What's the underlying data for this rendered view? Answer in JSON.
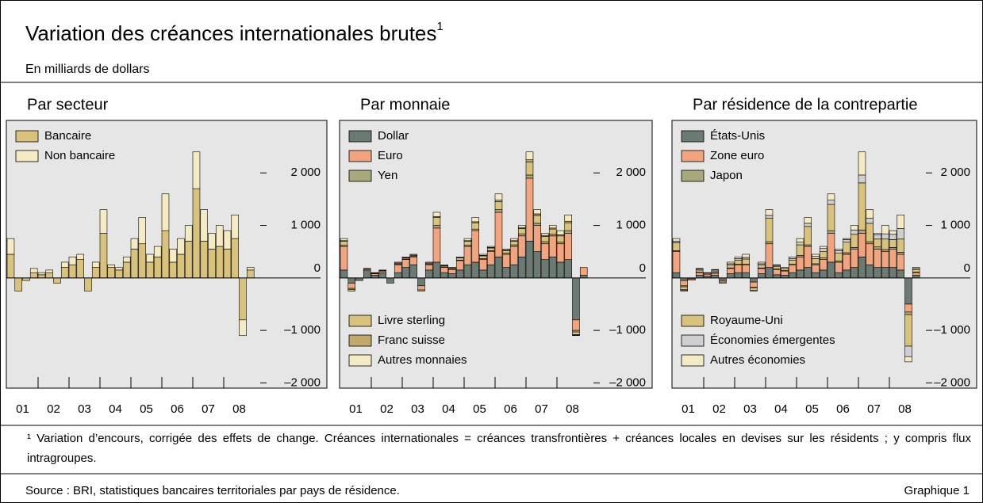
{
  "title": "Variation des créances internationales brutes",
  "title_note": "1",
  "subtitle": "En milliards de dollars",
  "footnote": "¹ Variation d’encours, corrigée des effets de change. Créances internationales = créances transfrontières + créances locales en devises sur les résidents ; y compris flux intragroupes.",
  "source": "Source : BRI, statistiques bancaires territoriales par pays de résidence.",
  "graph_number": "Graphique 1",
  "chart_data": [
    {
      "type": "bar",
      "stacked": true,
      "title": "Par secteur",
      "categories": [
        "01",
        "02",
        "03",
        "04",
        "05",
        "06",
        "07",
        "08"
      ],
      "ylim": [
        -2100,
        3000
      ],
      "yticks": [
        {
          "value": 2000,
          "label": "2 000"
        },
        {
          "value": 1000,
          "label": "1 000"
        },
        0,
        {
          "value": -1000,
          "label": "–1 000"
        },
        {
          "value": -2000,
          "label": "–2 000"
        }
      ],
      "series": [
        {
          "name": "Bancaire",
          "color": "#d9c27c",
          "values": [
            [
              450,
              -250,
              -50,
              100
            ],
            [
              60,
              100,
              -100,
              200
            ],
            [
              250,
              350,
              -250,
              200
            ],
            [
              850,
              200,
              150,
              300
            ],
            [
              550,
              650,
              300,
              400
            ],
            [
              900,
              300,
              450,
              700
            ],
            [
              1700,
              700,
              550,
              600
            ],
            [
              550,
              750,
              -800,
              150
            ]
          ]
        },
        {
          "name": "Non bancaire",
          "color": "#f4eac3",
          "values": [
            [
              300,
              0,
              0,
              80
            ],
            [
              40,
              50,
              0,
              100
            ],
            [
              150,
              100,
              0,
              100
            ],
            [
              450,
              50,
              50,
              100
            ],
            [
              200,
              500,
              150,
              200
            ],
            [
              700,
              250,
              300,
              300
            ],
            [
              700,
              600,
              300,
              400
            ],
            [
              350,
              450,
              -300,
              50
            ]
          ]
        }
      ]
    },
    {
      "type": "bar",
      "stacked": true,
      "title": "Par monnaie",
      "categories": [
        "01",
        "02",
        "03",
        "04",
        "05",
        "06",
        "07",
        "08"
      ],
      "ylim": [
        -2100,
        3000
      ],
      "yticks": [
        {
          "value": 2000,
          "label": "2 000"
        },
        {
          "value": 1000,
          "label": "1 000"
        },
        0,
        {
          "value": -1000,
          "label": "–1 000"
        },
        {
          "value": -2000,
          "label": "–2 000"
        }
      ],
      "series": [
        {
          "name": "Dollar",
          "color": "#6b7a72",
          "values": [
            [
              150,
              -100,
              -50,
              150
            ],
            [
              50,
              100,
              -100,
              100
            ],
            [
              200,
              250,
              -150,
              150
            ],
            [
              300,
              100,
              80,
              150
            ],
            [
              250,
              300,
              150,
              250
            ],
            [
              400,
              200,
              250,
              400
            ],
            [
              700,
              500,
              350,
              400
            ],
            [
              300,
              350,
              -800,
              50
            ]
          ]
        },
        {
          "name": "Euro",
          "color": "#f2a47f",
          "values": [
            [
              450,
              -100,
              0,
              20
            ],
            [
              30,
              30,
              0,
              150
            ],
            [
              150,
              150,
              -80,
              100
            ],
            [
              650,
              100,
              80,
              180
            ],
            [
              350,
              600,
              200,
              250
            ],
            [
              850,
              250,
              350,
              400
            ],
            [
              1200,
              500,
              300,
              400
            ],
            [
              350,
              500,
              -200,
              150
            ]
          ]
        },
        {
          "name": "Yen",
          "color": "#a9a87b",
          "values": [
            [
              20,
              -20,
              0,
              0
            ],
            [
              0,
              0,
              0,
              10
            ],
            [
              10,
              10,
              0,
              10
            ],
            [
              50,
              10,
              10,
              10
            ],
            [
              20,
              30,
              20,
              20
            ],
            [
              50,
              20,
              30,
              40
            ],
            [
              60,
              40,
              40,
              30
            ],
            [
              30,
              50,
              -30,
              0
            ]
          ]
        },
        {
          "name": "Livre sterling",
          "color": "#d9c27c",
          "values": [
            [
              80,
              -30,
              0,
              10
            ],
            [
              10,
              10,
              0,
              20
            ],
            [
              20,
              20,
              -20,
              20
            ],
            [
              150,
              20,
              20,
              40
            ],
            [
              80,
              120,
              50,
              50
            ],
            [
              150,
              50,
              70,
              100
            ],
            [
              250,
              150,
              100,
              100
            ],
            [
              120,
              150,
              -50,
              0
            ]
          ]
        },
        {
          "name": "Franc suisse",
          "color": "#c3a86b",
          "values": [
            [
              10,
              0,
              0,
              0
            ],
            [
              0,
              0,
              0,
              5
            ],
            [
              5,
              5,
              0,
              5
            ],
            [
              20,
              5,
              5,
              5
            ],
            [
              10,
              20,
              10,
              10
            ],
            [
              30,
              10,
              10,
              20
            ],
            [
              40,
              30,
              20,
              20
            ],
            [
              20,
              30,
              -10,
              0
            ]
          ]
        },
        {
          "name": "Autres monnaies",
          "color": "#f4eac3",
          "values": [
            [
              40,
              0,
              0,
              0
            ],
            [
              10,
              10,
              0,
              15
            ],
            [
              15,
              15,
              0,
              15
            ],
            [
              80,
              15,
              5,
              15
            ],
            [
              40,
              80,
              20,
              20
            ],
            [
              120,
              20,
              40,
              40
            ],
            [
              150,
              80,
              40,
              50
            ],
            [
              80,
              120,
              -10,
              0
            ]
          ]
        }
      ]
    },
    {
      "type": "bar",
      "stacked": true,
      "title": "Par résidence de la contrepartie",
      "categories": [
        "01",
        "02",
        "03",
        "04",
        "05",
        "06",
        "07",
        "08"
      ],
      "ylim": [
        -2100,
        3000
      ],
      "yticks": [
        {
          "value": 2000,
          "label": "2 000"
        },
        {
          "value": 1000,
          "label": "1 000"
        },
        0,
        {
          "value": -1000,
          "label": "–1 000"
        },
        {
          "value": -2000,
          "label": "–2 000"
        }
      ],
      "series": [
        {
          "name": "États-Unis",
          "color": "#6b7a72",
          "values": [
            [
              100,
              -50,
              -20,
              50
            ],
            [
              30,
              50,
              -50,
              80
            ],
            [
              100,
              100,
              -80,
              80
            ],
            [
              200,
              60,
              50,
              100
            ],
            [
              150,
              200,
              100,
              150
            ],
            [
              300,
              100,
              150,
              200
            ],
            [
              400,
              250,
              200,
              200
            ],
            [
              200,
              150,
              -500,
              50
            ]
          ]
        },
        {
          "name": "Zone euro",
          "color": "#f2a47f",
          "values": [
            [
              400,
              -100,
              -20,
              50
            ],
            [
              40,
              40,
              -30,
              100
            ],
            [
              150,
              150,
              -100,
              100
            ],
            [
              450,
              100,
              80,
              150
            ],
            [
              250,
              400,
              150,
              200
            ],
            [
              550,
              200,
              300,
              350
            ],
            [
              450,
              400,
              350,
              300
            ],
            [
              350,
              300,
              -150,
              50
            ]
          ]
        },
        {
          "name": "Japon",
          "color": "#a9a87b",
          "values": [
            [
              20,
              -20,
              0,
              10
            ],
            [
              0,
              10,
              0,
              10
            ],
            [
              10,
              10,
              -10,
              10
            ],
            [
              40,
              10,
              10,
              10
            ],
            [
              30,
              30,
              20,
              30
            ],
            [
              50,
              20,
              30,
              30
            ],
            [
              60,
              40,
              40,
              40
            ],
            [
              30,
              40,
              -50,
              10
            ]
          ]
        },
        {
          "name": "Royaume-Uni",
          "color": "#d9c27c",
          "values": [
            [
              150,
              -50,
              0,
              40
            ],
            [
              20,
              30,
              -20,
              60
            ],
            [
              80,
              100,
              -50,
              60
            ],
            [
              450,
              50,
              40,
              80
            ],
            [
              200,
              350,
              100,
              120
            ],
            [
              500,
              150,
              200,
              250
            ],
            [
              900,
              350,
              150,
              200
            ],
            [
              150,
              250,
              -600,
              50
            ]
          ]
        },
        {
          "name": "Économies émergentes",
          "color": "#cfcfcf",
          "values": [
            [
              30,
              -20,
              0,
              20
            ],
            [
              10,
              20,
              0,
              20
            ],
            [
              30,
              30,
              0,
              20
            ],
            [
              50,
              20,
              20,
              30
            ],
            [
              50,
              60,
              40,
              60
            ],
            [
              80,
              50,
              50,
              80
            ],
            [
              150,
              100,
              80,
              100
            ],
            [
              100,
              200,
              -200,
              20
            ]
          ]
        },
        {
          "name": "Autres économies",
          "color": "#f4eac3",
          "values": [
            [
              50,
              -10,
              0,
              10
            ],
            [
              0,
              10,
              0,
              30
            ],
            [
              30,
              60,
              -10,
              30
            ],
            [
              110,
              10,
              0,
              30
            ],
            [
              70,
              110,
              40,
              40
            ],
            [
              120,
              30,
              20,
              90
            ],
            [
              440,
              160,
              30,
              160
            ],
            [
              70,
              260,
              -100,
              20
            ]
          ]
        }
      ]
    }
  ]
}
